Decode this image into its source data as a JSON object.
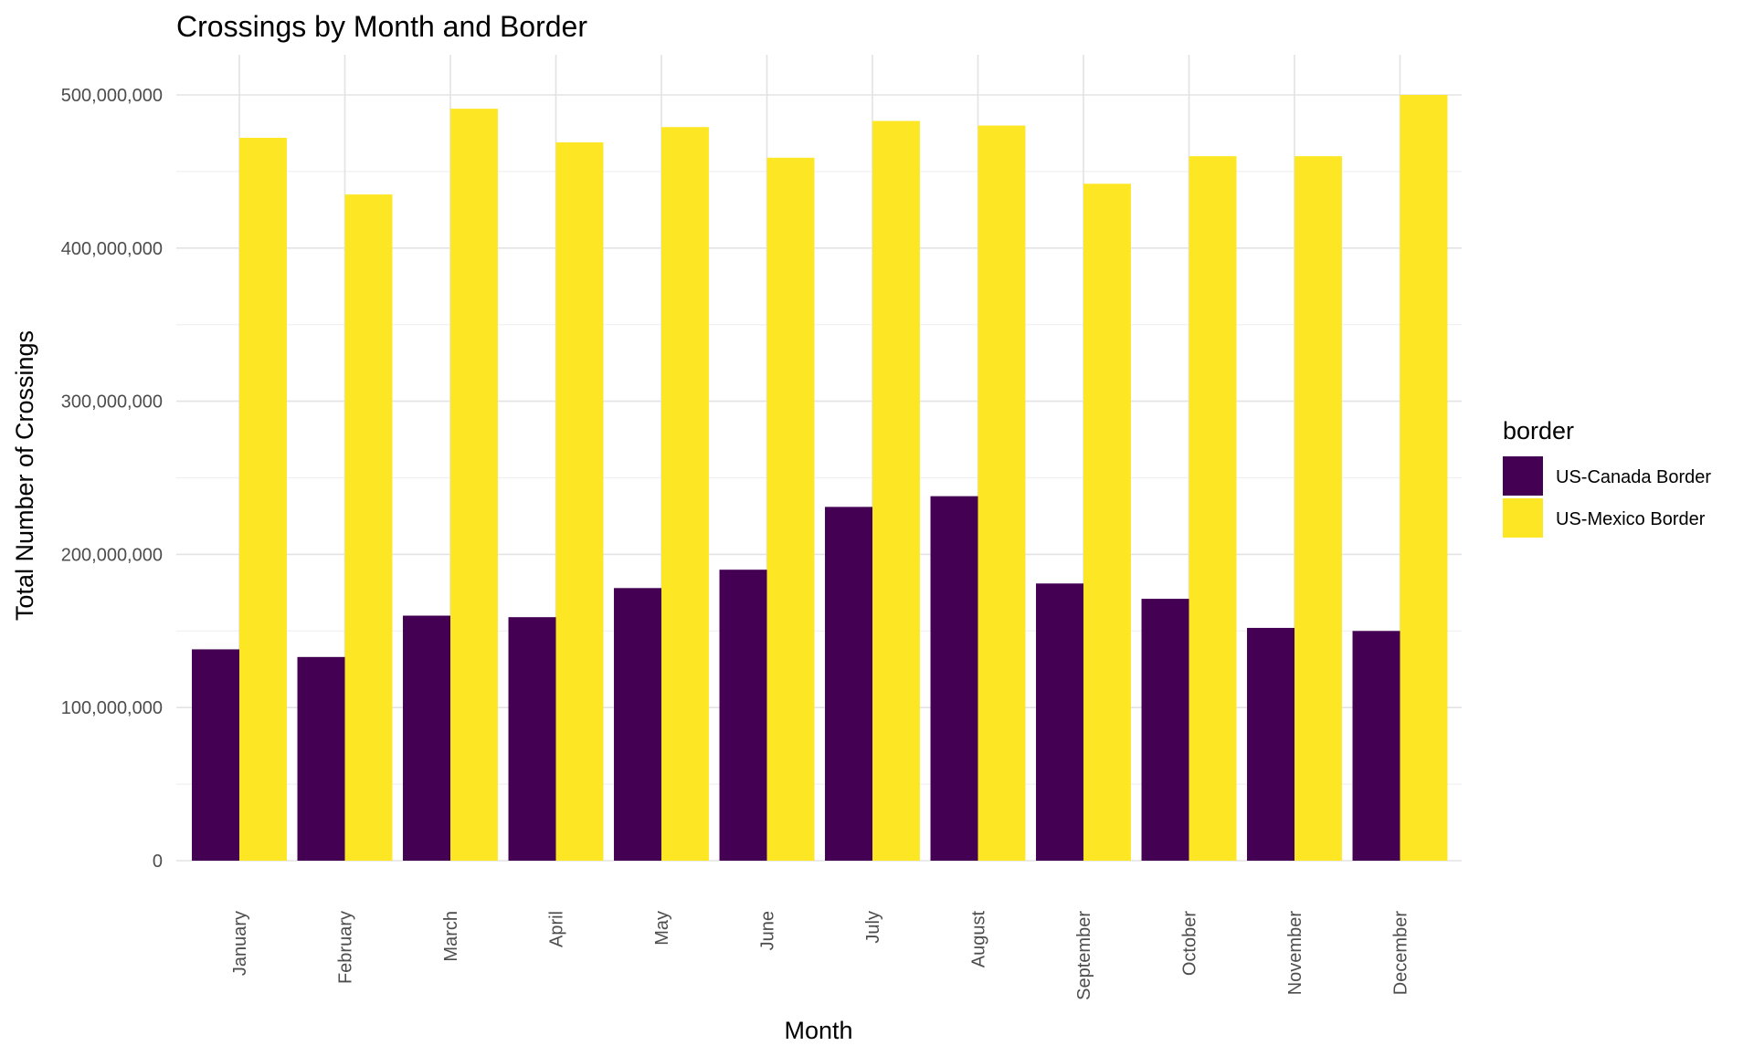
{
  "chart_data": {
    "type": "bar",
    "title": "Crossings by Month and Border",
    "xlabel": "Month",
    "ylabel": "Total Number of Crossings",
    "categories": [
      "January",
      "February",
      "March",
      "April",
      "May",
      "June",
      "July",
      "August",
      "September",
      "October",
      "November",
      "December"
    ],
    "series": [
      {
        "name": "US-Canada Border",
        "color": "#440154",
        "values": [
          138000000,
          133000000,
          160000000,
          159000000,
          178000000,
          190000000,
          231000000,
          238000000,
          181000000,
          171000000,
          152000000,
          150000000
        ]
      },
      {
        "name": "US-Mexico Border",
        "color": "#FDE725",
        "values": [
          472000000,
          435000000,
          491000000,
          469000000,
          479000000,
          459000000,
          483000000,
          480000000,
          442000000,
          460000000,
          460000000,
          500000000
        ]
      }
    ],
    "ylim": [
      0,
      500000000
    ],
    "yticks": [
      0,
      100000000,
      200000000,
      300000000,
      400000000,
      500000000
    ],
    "ytick_labels": [
      "0",
      "100,000,000",
      "200,000,000",
      "300,000,000",
      "400,000,000",
      "500,000,000"
    ],
    "legend": {
      "title": "border",
      "position": "right"
    },
    "grid": true,
    "xtick_rotation": "vertical"
  }
}
